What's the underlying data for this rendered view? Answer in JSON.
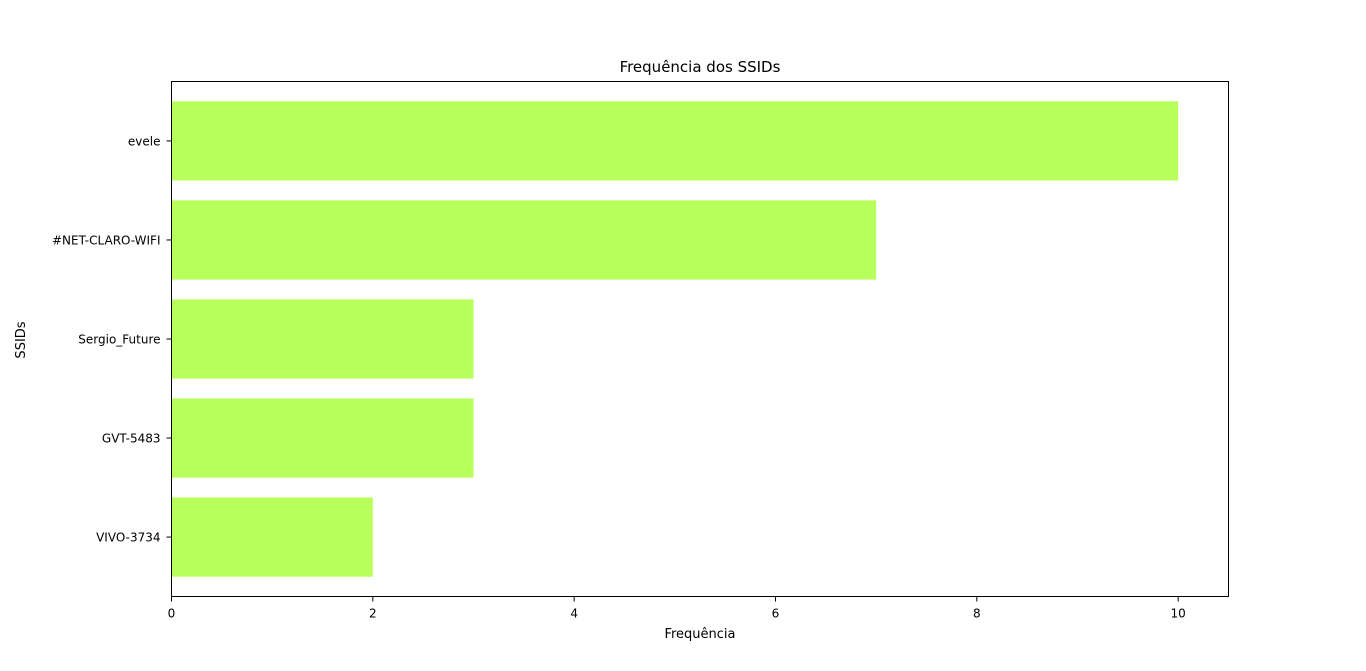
{
  "chart_data": {
    "type": "bar",
    "orientation": "horizontal",
    "title": "Frequência dos SSIDs",
    "xlabel": "Frequência",
    "ylabel": "SSIDs",
    "categories": [
      "evele",
      "#NET-CLARO-WIFI",
      "Sergio_Future",
      "GVT-5483",
      "VIVO-3734"
    ],
    "values": [
      10,
      7,
      3,
      3,
      2
    ],
    "xlim": [
      0,
      10.5
    ],
    "xticks": [
      0,
      2,
      4,
      6,
      8,
      10
    ],
    "bar_color": "#b9ff5c",
    "grid": false,
    "legend": "none"
  }
}
